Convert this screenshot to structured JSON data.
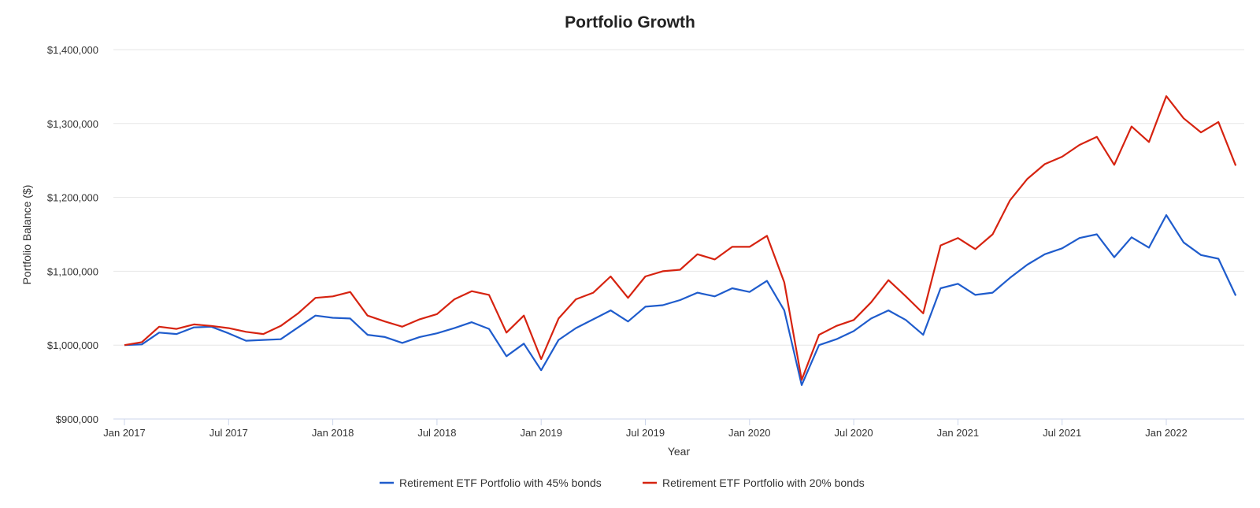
{
  "chart_data": {
    "type": "line",
    "title": "Portfolio Growth",
    "xlabel": "Year",
    "ylabel": "Portfolio Balance ($)",
    "ylim": [
      900000,
      1400000
    ],
    "y_ticks": [
      900000,
      1000000,
      1100000,
      1200000,
      1300000,
      1400000
    ],
    "y_tick_labels": [
      "$900,000",
      "$1,000,000",
      "$1,100,000",
      "$1,200,000",
      "$1,300,000",
      "$1,400,000"
    ],
    "x_ticks": [
      {
        "index": 0,
        "label": "Jan 2017"
      },
      {
        "index": 6,
        "label": "Jul 2017"
      },
      {
        "index": 12,
        "label": "Jan 2018"
      },
      {
        "index": 18,
        "label": "Jul 2018"
      },
      {
        "index": 24,
        "label": "Jan 2019"
      },
      {
        "index": 30,
        "label": "Jul 2019"
      },
      {
        "index": 36,
        "label": "Jan 2020"
      },
      {
        "index": 42,
        "label": "Jul 2020"
      },
      {
        "index": 48,
        "label": "Jan 2021"
      },
      {
        "index": 54,
        "label": "Jul 2021"
      },
      {
        "index": 60,
        "label": "Jan 2022"
      }
    ],
    "grid": true,
    "legend_position": "bottom-center",
    "series": [
      {
        "name": "Retirement ETF Portfolio with 45% bonds",
        "color": "#1f5ccc",
        "values": [
          1000000,
          1001000,
          1017000,
          1015000,
          1024000,
          1025000,
          1016000,
          1006000,
          1007000,
          1008000,
          1024000,
          1040000,
          1037000,
          1036000,
          1014000,
          1011000,
          1003000,
          1011000,
          1016000,
          1023000,
          1031000,
          1022000,
          985000,
          1002000,
          966000,
          1007000,
          1023000,
          1035000,
          1047000,
          1032000,
          1052000,
          1054000,
          1061000,
          1071000,
          1066000,
          1077000,
          1072000,
          1087000,
          1047000,
          946000,
          1000000,
          1008000,
          1019000,
          1036000,
          1047000,
          1034000,
          1014000,
          1077000,
          1083000,
          1068000,
          1071000,
          1091000,
          1109000,
          1123000,
          1131000,
          1145000,
          1150000,
          1119000,
          1146000,
          1132000,
          1176000,
          1139000,
          1122000,
          1117000,
          1067000
        ]
      },
      {
        "name": "Retirement ETF Portfolio with 20% bonds",
        "color": "#d62310",
        "values": [
          1000000,
          1004000,
          1025000,
          1022000,
          1028000,
          1026000,
          1023000,
          1018000,
          1015000,
          1026000,
          1043000,
          1064000,
          1066000,
          1072000,
          1040000,
          1032000,
          1025000,
          1035000,
          1042000,
          1062000,
          1073000,
          1068000,
          1017000,
          1040000,
          981000,
          1036000,
          1062000,
          1071000,
          1093000,
          1064000,
          1093000,
          1100000,
          1102000,
          1123000,
          1116000,
          1133000,
          1133000,
          1148000,
          1085000,
          953000,
          1014000,
          1026000,
          1034000,
          1058000,
          1088000,
          1066000,
          1043000,
          1135000,
          1145000,
          1130000,
          1150000,
          1196000,
          1225000,
          1245000,
          1255000,
          1271000,
          1282000,
          1244000,
          1296000,
          1275000,
          1337000,
          1307000,
          1288000,
          1302000,
          1243000
        ]
      }
    ]
  }
}
